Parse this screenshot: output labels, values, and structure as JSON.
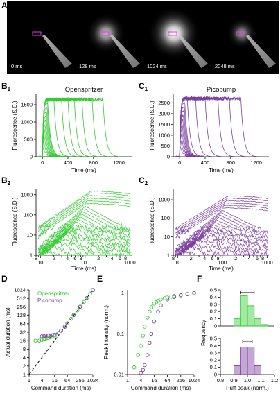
{
  "panels": {
    "A": "A",
    "B1": "B",
    "B1sub": "1",
    "C1": "C",
    "C1sub": "1",
    "B2": "B",
    "B2sub": "2",
    "C2": "C",
    "C2sub": "2",
    "D": "D",
    "E": "E",
    "F": "F"
  },
  "imaging": {
    "frames": [
      {
        "time": "0 ms",
        "brightness": 0.0
      },
      {
        "time": "128 ms",
        "brightness": 0.55
      },
      {
        "time": "1024 ms",
        "brightness": 1.0
      },
      {
        "time": "2048 ms",
        "brightness": 0.25
      }
    ],
    "roi_color": "#e040e0"
  },
  "colors": {
    "openspritzer": "#33cc33",
    "picopump": "#7b3fa0"
  },
  "chart_data": [
    {
      "id": "B1",
      "type": "line",
      "title": "Openspritzer",
      "xlabel": "Time (ms)",
      "ylabel": "Fluorescence (S.D.)",
      "xlim": [
        -100,
        1400
      ],
      "ylim": [
        0,
        1800
      ],
      "xticks": [
        0,
        400,
        800,
        1200
      ],
      "yticks": [
        0,
        500,
        1000,
        1500
      ],
      "offsets_ms": [
        80,
        180,
        300,
        400,
        500,
        620,
        780,
        950
      ],
      "plateau": 1650
    },
    {
      "id": "C1",
      "type": "line",
      "title": "Picopump",
      "xlabel": "Time (ms)",
      "ylabel": "Fluorescence (S.D.)",
      "xlim": [
        -100,
        1400
      ],
      "ylim": [
        0,
        2900
      ],
      "xticks": [
        0,
        400,
        800,
        1200
      ],
      "yticks": [
        0,
        500,
        1000,
        1500,
        2000,
        2500
      ],
      "offsets_ms": [
        120,
        250,
        400,
        600,
        780,
        960
      ],
      "plateau": 2700
    },
    {
      "id": "B2",
      "type": "line",
      "scale": "log-log",
      "xlabel": "Time (ms)",
      "ylabel": "Fluorescence (S.D.)",
      "xlim": [
        8,
        1100
      ],
      "ylim": [
        1,
        2000
      ],
      "xticks_major": [
        10,
        100,
        1000
      ],
      "yticks": [
        1,
        10,
        100,
        1000
      ],
      "minor_labels": [
        "2",
        "4",
        "6",
        "8"
      ]
    },
    {
      "id": "C2",
      "type": "line",
      "scale": "log-log",
      "xlabel": "Time (ms)",
      "ylabel": "Fluorescence (S.D.)",
      "xlim": [
        8,
        1100
      ],
      "ylim": [
        1,
        4000
      ],
      "xticks_major": [
        10,
        100,
        1000
      ],
      "yticks": [
        1,
        10,
        100,
        1000
      ],
      "minor_labels": [
        "2",
        "4",
        "6",
        "8"
      ]
    },
    {
      "id": "D",
      "type": "scatter",
      "scale": "log2",
      "xlabel": "Command duration (ms)",
      "ylabel": "Actual duration (ms)",
      "xlim": [
        1,
        1024
      ],
      "ylim": [
        1,
        1024
      ],
      "ticks": [
        1,
        4,
        16,
        64,
        256,
        1024
      ],
      "yticks": [
        1,
        2,
        4,
        8,
        16,
        32,
        64,
        128,
        256,
        512,
        1024
      ],
      "legend": [
        "Openspritzer",
        "Picopump"
      ],
      "series": [
        {
          "name": "Openspritzer",
          "x": [
            2,
            3,
            4,
            5,
            6,
            8,
            10,
            12,
            16,
            20,
            24,
            32,
            48,
            64,
            96,
            128,
            192,
            256,
            384,
            512,
            768,
            1024
          ],
          "y": [
            16,
            16,
            17,
            18,
            19,
            20,
            21,
            22,
            24,
            26,
            30,
            36,
            50,
            66,
            96,
            130,
            190,
            260,
            380,
            520,
            760,
            1000
          ]
        },
        {
          "name": "Picopump",
          "x": [
            4,
            5,
            6,
            8,
            10,
            12,
            16,
            24,
            32,
            48,
            64,
            128,
            256,
            512,
            1024
          ],
          "y": [
            23,
            23,
            24,
            24,
            24,
            25,
            26,
            30,
            36,
            50,
            66,
            130,
            256,
            512,
            1024
          ]
        }
      ]
    },
    {
      "id": "E",
      "type": "scatter",
      "scale": "log2-log",
      "xlabel": "Command duration (ms)",
      "ylabel": "Peak intensity (norm.)",
      "xlim": [
        1,
        1024
      ],
      "ylim": [
        0.01,
        1.2
      ],
      "ticks": [
        1,
        4,
        16,
        64,
        256,
        1024
      ],
      "yticks": [
        0.01,
        0.1,
        1
      ],
      "series": [
        {
          "name": "Openspritzer",
          "x": [
            2,
            3,
            4,
            5,
            6,
            8,
            10,
            12,
            16,
            20,
            24,
            32,
            48,
            64,
            96,
            128,
            256,
            512,
            1024
          ],
          "y": [
            0.015,
            0.03,
            0.05,
            0.09,
            0.15,
            0.25,
            0.35,
            0.45,
            0.55,
            0.6,
            0.65,
            0.7,
            0.75,
            0.78,
            0.82,
            0.85,
            0.9,
            0.95,
            1.0
          ]
        },
        {
          "name": "Picopump",
          "x": [
            4,
            5,
            6,
            8,
            10,
            12,
            16,
            24,
            32,
            64,
            128,
            256,
            512,
            1024
          ],
          "y": [
            0.011,
            0.013,
            0.017,
            0.03,
            0.06,
            0.1,
            0.2,
            0.35,
            0.5,
            0.7,
            0.8,
            0.88,
            0.94,
            1.0
          ]
        }
      ]
    },
    {
      "id": "F",
      "type": "bar",
      "xlabel": "Puff peak (norm.)",
      "ylabel": "Frequency",
      "xlim": [
        0.8,
        1.2
      ],
      "ylim": [
        0,
        0.5
      ],
      "xticks": [
        0.8,
        0.9,
        1.0,
        1.1,
        1.2
      ],
      "yticks": [
        0,
        0.1,
        0.2,
        0.3,
        0.4,
        0.5
      ],
      "bin_edges": [
        0.9,
        0.95,
        1.0,
        1.05,
        1.1,
        1.15
      ],
      "series": [
        {
          "name": "Openspritzer",
          "values": [
            0.1,
            0.42,
            0.28,
            0.1,
            0.02
          ],
          "err_mean": 1.0,
          "err_sd": 0.05
        },
        {
          "name": "Picopump",
          "values": [
            0.12,
            0.38,
            0.38,
            0.12,
            0.0
          ],
          "err_mean": 1.0,
          "err_sd": 0.035
        }
      ]
    }
  ]
}
